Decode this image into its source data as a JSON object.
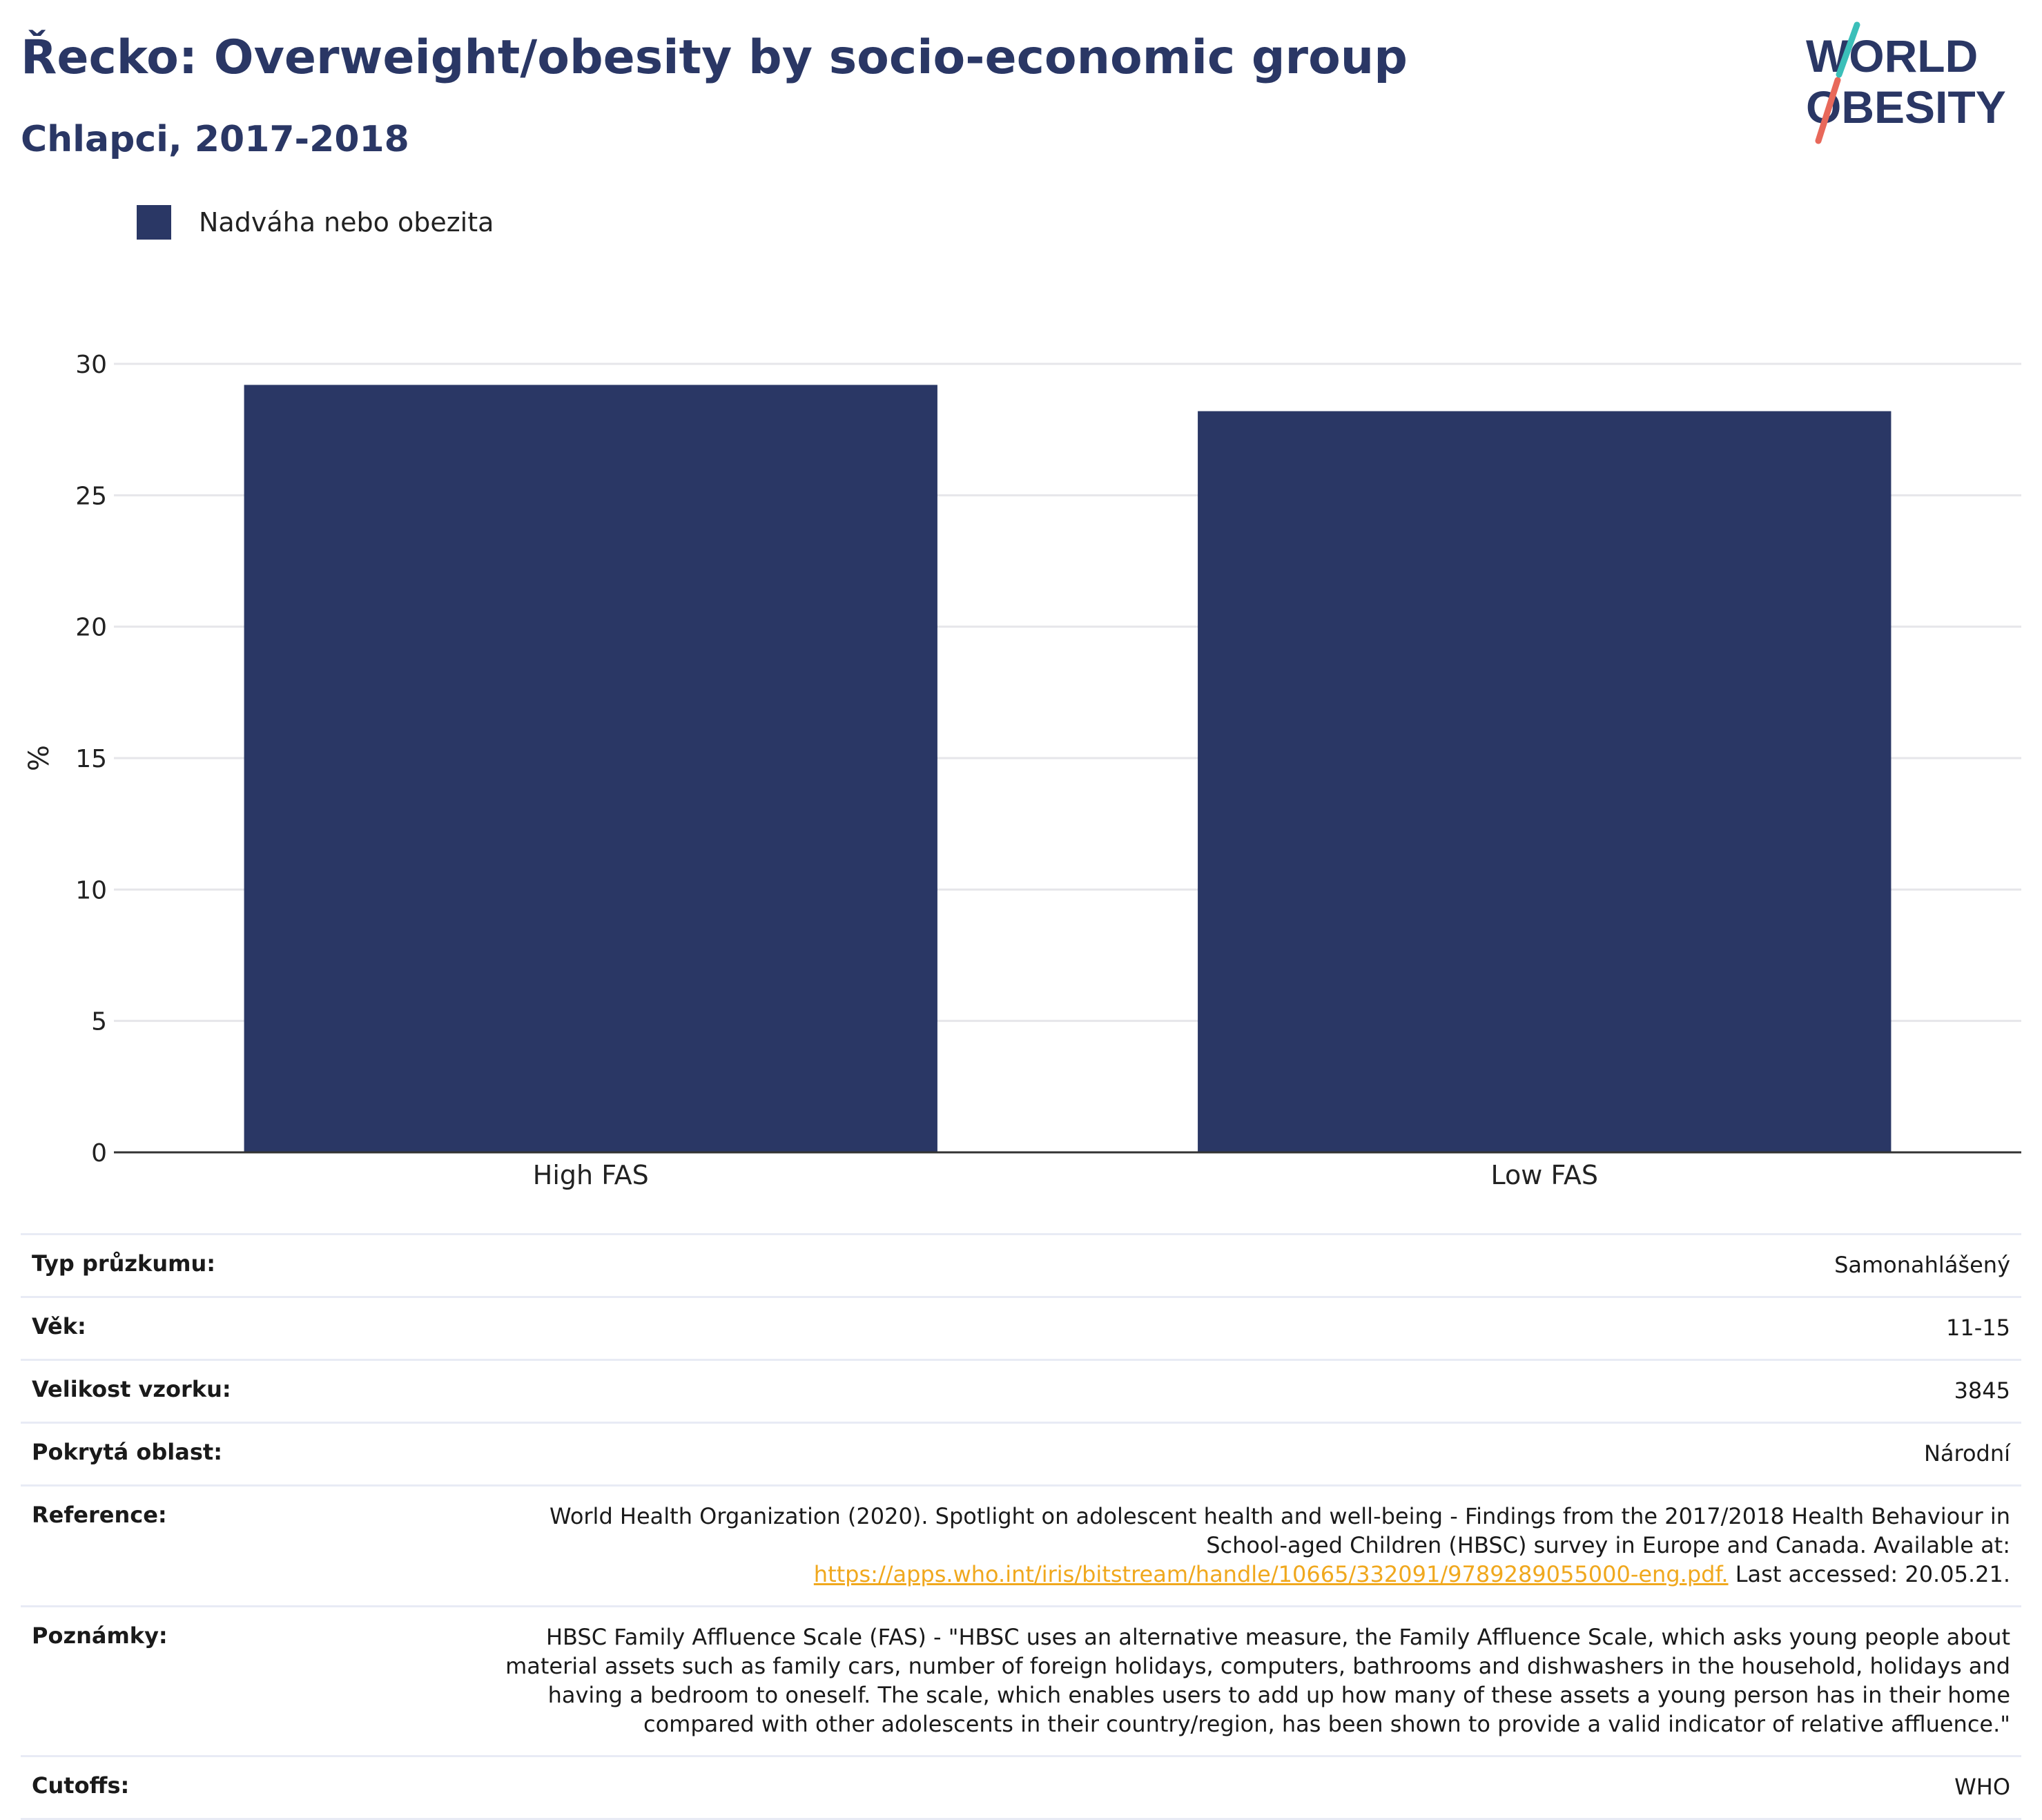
{
  "header": {
    "title": "Řecko: Overweight/obesity by socio-economic group",
    "subtitle": "Chlapci, 2017-2018"
  },
  "logo": {
    "line1": "WORLD",
    "line2": "OBESITY",
    "colors": {
      "text": "#2a3765",
      "teal": "#3bbfb9",
      "coral": "#e8685a"
    }
  },
  "legend": {
    "label": "Nadváha nebo obezita",
    "color": "#2a3765"
  },
  "chart_data": {
    "type": "bar",
    "categories": [
      "High FAS",
      "Low FAS"
    ],
    "series": [
      {
        "name": "Nadváha nebo obezita",
        "values": [
          29.2,
          28.2
        ],
        "color": "#2a3765"
      }
    ],
    "ylabel": "%",
    "ylim": [
      0,
      30
    ],
    "yticks": [
      "0",
      "5",
      "10",
      "15",
      "20",
      "25",
      "30"
    ],
    "grid": true,
    "legend_position": "top-left"
  },
  "meta": {
    "survey_type": {
      "label": "Typ průzkumu:",
      "value": "Samonahlášený"
    },
    "age": {
      "label": "Věk:",
      "value": "11-15"
    },
    "sample": {
      "label": "Velikost vzorku:",
      "value": "3845"
    },
    "area": {
      "label": "Pokrytá oblast:",
      "value": "Národní"
    },
    "reference": {
      "label": "Reference:",
      "line1": "World Health Organization (2020). Spotlight on adolescent health and well-being - Findings from the 2017/2018 Health Behaviour in",
      "line2": "School-aged Children (HBSC) survey in Europe and Canada. Available at:",
      "link": "https://apps.who.int/iris/bitstream/handle/10665/332091/9789289055000-eng.pdf.",
      "after": " Last accessed: 20.05.21."
    },
    "notes": {
      "label": "Poznámky:",
      "line1": "HBSC Family Affluence Scale (FAS) - \"HBSC uses an alternative measure, the Family Affluence Scale, which asks young people about",
      "line2": "material assets such as family cars, number of foreign holidays, computers, bathrooms and dishwashers in the household, holidays and",
      "line3": "having a bedroom to oneself. The scale, which enables users to add up how many of these assets a young person has in their home",
      "line4": "compared with other adolescents in their country/region, has been shown to provide a valid indicator of relative affluence.\""
    },
    "cutoffs": {
      "label": "Cutoffs:",
      "value": "WHO"
    }
  }
}
